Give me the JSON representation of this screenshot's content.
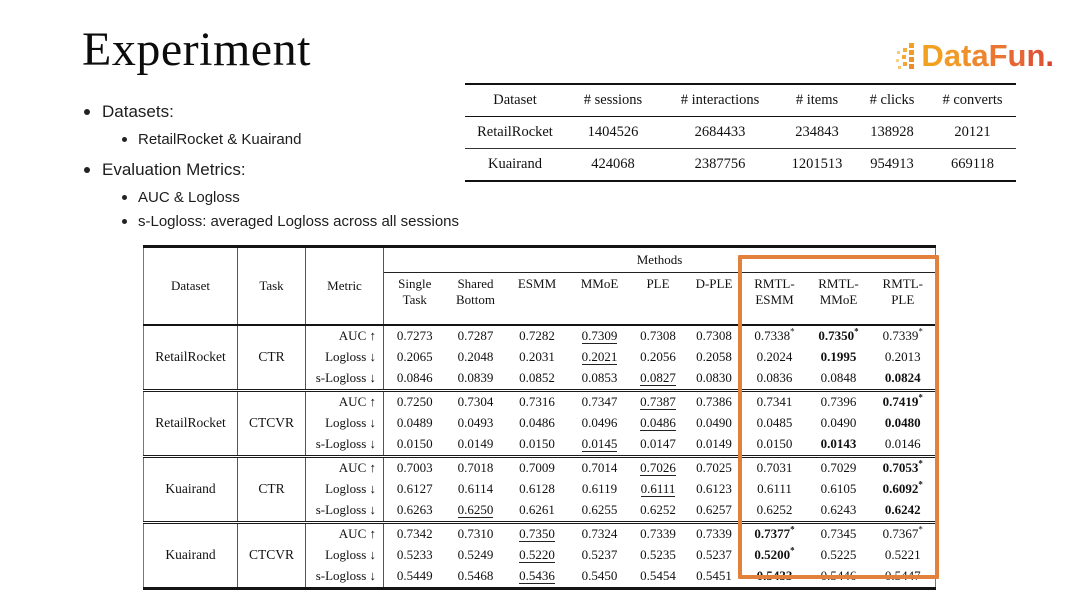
{
  "slide": {
    "title": "Experiment"
  },
  "logo": {
    "text": "DataFun.",
    "letter_colors": [
      "#F2A01F",
      "#F29A26",
      "#F0902B",
      "#EE862F",
      "#EA7632",
      "#E66634",
      "#E05534",
      "#D94330"
    ]
  },
  "bullets": [
    {
      "label": "Datasets:",
      "sub": [
        "RetailRocket  & Kuairand"
      ]
    },
    {
      "label": "Evaluation Metrics:",
      "sub": [
        "AUC & Logloss",
        "s-Logloss: averaged Logloss across all sessions"
      ]
    }
  ],
  "dataset_table": {
    "headers": [
      "Dataset",
      "# sessions",
      "# interactions",
      "# items",
      "# clicks",
      "# converts"
    ],
    "rows": [
      [
        "RetailRocket",
        "1404526",
        "2684433",
        "234843",
        "138928",
        "20121"
      ],
      [
        "Kuairand",
        "424068",
        "2387756",
        "1201513",
        "954913",
        "669118"
      ]
    ]
  },
  "results_table": {
    "highlight_color": "#E2813C",
    "header": {
      "dataset": "Dataset",
      "task": "Task",
      "metric": "Metric",
      "methods": "Methods",
      "method_columns": [
        "Single Task",
        "Shared Bottom",
        "ESMM",
        "MMoE",
        "PLE",
        "D-PLE",
        "RMTL-ESMM",
        "RMTL-MMoE",
        "RMTL-PLE"
      ]
    },
    "blocks": [
      {
        "dataset": "RetailRocket",
        "task": "CTR",
        "rows": [
          {
            "metric": "AUC ↑",
            "values": [
              "0.7273",
              "0.7287",
              "0.7282",
              "0.7309",
              "0.7308",
              "0.7308",
              "0.7338*",
              "0.7350*",
              "0.7339*"
            ],
            "underline": [
              3
            ],
            "bold": [
              7
            ]
          },
          {
            "metric": "Logloss ↓",
            "values": [
              "0.2065",
              "0.2048",
              "0.2031",
              "0.2021",
              "0.2056",
              "0.2058",
              "0.2024",
              "0.1995",
              "0.2013"
            ],
            "underline": [
              3
            ],
            "bold": [
              7
            ]
          },
          {
            "metric": "s-Logloss ↓",
            "values": [
              "0.0846",
              "0.0839",
              "0.0852",
              "0.0853",
              "0.0827",
              "0.0830",
              "0.0836",
              "0.0848",
              "0.0824"
            ],
            "underline": [
              4
            ],
            "bold": [
              8
            ]
          }
        ]
      },
      {
        "dataset": "RetailRocket",
        "task": "CTCVR",
        "rows": [
          {
            "metric": "AUC ↑",
            "values": [
              "0.7250",
              "0.7304",
              "0.7316",
              "0.7347",
              "0.7387",
              "0.7386",
              "0.7341",
              "0.7396",
              "0.7419*"
            ],
            "underline": [
              4
            ],
            "bold": [
              8
            ]
          },
          {
            "metric": "Logloss ↓",
            "values": [
              "0.0489",
              "0.0493",
              "0.0486",
              "0.0496",
              "0.0486",
              "0.0490",
              "0.0485",
              "0.0490",
              "0.0480"
            ],
            "underline": [
              4
            ],
            "bold": [
              8
            ]
          },
          {
            "metric": "s-Logloss ↓",
            "values": [
              "0.0150",
              "0.0149",
              "0.0150",
              "0.0145",
              "0.0147",
              "0.0149",
              "0.0150",
              "0.0143",
              "0.0146"
            ],
            "underline": [
              3
            ],
            "bold": [
              7
            ]
          }
        ]
      },
      {
        "dataset": "Kuairand",
        "task": "CTR",
        "rows": [
          {
            "metric": "AUC ↑",
            "values": [
              "0.7003",
              "0.7018",
              "0.7009",
              "0.7014",
              "0.7026",
              "0.7025",
              "0.7031",
              "0.7029",
              "0.7053*"
            ],
            "underline": [
              4
            ],
            "bold": [
              8
            ]
          },
          {
            "metric": "Logloss ↓",
            "values": [
              "0.6127",
              "0.6114",
              "0.6128",
              "0.6119",
              "0.6111",
              "0.6123",
              "0.6111",
              "0.6105",
              "0.6092*"
            ],
            "underline": [
              4
            ],
            "bold": [
              8
            ]
          },
          {
            "metric": "s-Logloss ↓",
            "values": [
              "0.6263",
              "0.6250",
              "0.6261",
              "0.6255",
              "0.6252",
              "0.6257",
              "0.6252",
              "0.6243",
              "0.6242"
            ],
            "underline": [
              1
            ],
            "bold": [
              8
            ]
          }
        ]
      },
      {
        "dataset": "Kuairand",
        "task": "CTCVR",
        "rows": [
          {
            "metric": "AUC ↑",
            "values": [
              "0.7342",
              "0.7310",
              "0.7350",
              "0.7324",
              "0.7339",
              "0.7339",
              "0.7377*",
              "0.7345",
              "0.7367*"
            ],
            "underline": [
              2
            ],
            "bold": [
              6
            ]
          },
          {
            "metric": "Logloss ↓",
            "values": [
              "0.5233",
              "0.5249",
              "0.5220",
              "0.5237",
              "0.5235",
              "0.5237",
              "0.5200*",
              "0.5225",
              "0.5221"
            ],
            "underline": [
              2
            ],
            "bold": [
              6
            ]
          },
          {
            "metric": "s-Logloss ↓",
            "values": [
              "0.5449",
              "0.5468",
              "0.5436",
              "0.5450",
              "0.5454",
              "0.5451",
              "0.5433",
              "0.5446",
              "0.5447"
            ],
            "underline": [
              2
            ],
            "bold": [
              6
            ]
          }
        ]
      }
    ]
  }
}
